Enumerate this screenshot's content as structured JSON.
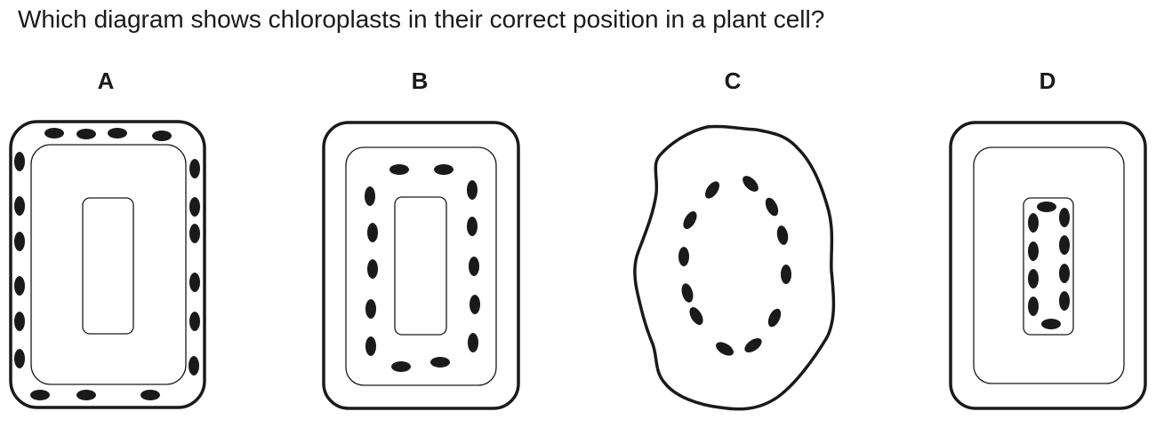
{
  "question": "Which diagram shows chloroplasts in their correct position in a plant cell?",
  "options": [
    {
      "label": "A"
    },
    {
      "label": "B"
    },
    {
      "label": "C"
    },
    {
      "label": "D"
    }
  ],
  "colors": {
    "ink": "#1a1a1a",
    "background": "#ffffff"
  }
}
